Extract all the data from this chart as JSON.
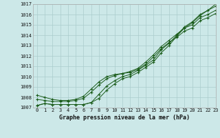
{
  "x": [
    0,
    1,
    2,
    3,
    4,
    5,
    6,
    7,
    8,
    9,
    10,
    11,
    12,
    13,
    14,
    15,
    16,
    17,
    18,
    19,
    20,
    21,
    22,
    23
  ],
  "series1": [
    1007.2,
    1007.4,
    1007.3,
    1007.3,
    1007.3,
    1007.3,
    1007.3,
    1007.5,
    1007.9,
    1008.7,
    1009.3,
    1009.8,
    1010.0,
    1010.4,
    1010.9,
    1011.4,
    1012.3,
    1013.0,
    1013.9,
    1014.7,
    1015.2,
    1015.9,
    1016.4,
    1017.0
  ],
  "series2": [
    1007.2,
    1007.4,
    1007.3,
    1007.3,
    1007.3,
    1007.3,
    1007.3,
    1007.5,
    1008.3,
    1009.1,
    1009.6,
    1010.0,
    1010.2,
    1010.6,
    1011.1,
    1011.6,
    1012.6,
    1013.2,
    1014.0,
    1014.8,
    1015.3,
    1016.0,
    1016.4,
    1016.8
  ],
  "series3": [
    1007.8,
    1007.7,
    1007.6,
    1007.6,
    1007.6,
    1007.7,
    1007.9,
    1008.5,
    1009.2,
    1009.8,
    1010.1,
    1010.3,
    1010.5,
    1010.8,
    1011.4,
    1012.1,
    1012.9,
    1013.5,
    1014.1,
    1014.7,
    1015.0,
    1015.7,
    1016.0,
    1016.4
  ],
  "series4": [
    1008.2,
    1008.0,
    1007.8,
    1007.7,
    1007.7,
    1007.8,
    1008.1,
    1008.8,
    1009.5,
    1010.0,
    1010.2,
    1010.3,
    1010.4,
    1010.7,
    1011.2,
    1011.9,
    1012.7,
    1013.3,
    1013.8,
    1014.4,
    1014.7,
    1015.4,
    1015.7,
    1016.1
  ],
  "line_color": "#1a5c1a",
  "bg_color": "#cce8e8",
  "grid_color": "#aacccc",
  "xlabel": "Graphe pression niveau de la mer (hPa)",
  "ylim": [
    1007,
    1017
  ],
  "xlim": [
    -0.5,
    23
  ],
  "yticks": [
    1007,
    1008,
    1009,
    1010,
    1011,
    1012,
    1013,
    1014,
    1015,
    1016,
    1017
  ],
  "xticks": [
    0,
    1,
    2,
    3,
    4,
    5,
    6,
    7,
    8,
    9,
    10,
    11,
    12,
    13,
    14,
    15,
    16,
    17,
    18,
    19,
    20,
    21,
    22,
    23
  ],
  "tick_fontsize": 5,
  "xlabel_fontsize": 6,
  "figsize": [
    3.2,
    2.0
  ],
  "dpi": 100
}
